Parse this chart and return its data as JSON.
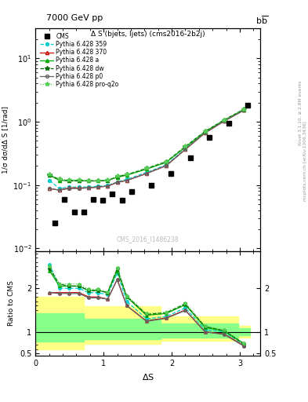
{
  "title_top": "7000 GeV pp",
  "title_right": "b$\\bar{b}$",
  "plot_title": "Δ S (bjets, ljets) (cms2016-2b2j)",
  "ylabel_main": "1/σ dσ/dΔ S [1/rad]",
  "ylabel_ratio": "Ratio to CMS",
  "xlabel": "ΔS",
  "watermark": "CMS_2016_I1486238",
  "rivet_label": "Rivet 3.1.10, ≥ 2.8M events",
  "mcplots_label": "mcplots.cern.ch [arXiv:1306.3436]",
  "cms_x": [
    0.28,
    0.42,
    0.57,
    0.71,
    0.85,
    0.99,
    1.13,
    1.27,
    1.41,
    1.7,
    1.99,
    2.27,
    2.55,
    2.84,
    3.12
  ],
  "cms_y": [
    0.025,
    0.06,
    0.038,
    0.038,
    0.06,
    0.058,
    0.072,
    0.058,
    0.078,
    0.1,
    0.15,
    0.27,
    0.56,
    0.95,
    1.8
  ],
  "ds_x": [
    0.21,
    0.35,
    0.49,
    0.64,
    0.78,
    0.92,
    1.06,
    1.2,
    1.34,
    1.63,
    1.92,
    2.2,
    2.49,
    2.77,
    3.06
  ],
  "p359_y": [
    0.118,
    0.088,
    0.093,
    0.093,
    0.093,
    0.096,
    0.098,
    0.112,
    0.123,
    0.158,
    0.208,
    0.375,
    0.675,
    1.04,
    1.54
  ],
  "p370_y": [
    0.088,
    0.083,
    0.09,
    0.09,
    0.09,
    0.093,
    0.096,
    0.11,
    0.118,
    0.152,
    0.202,
    0.365,
    0.665,
    1.02,
    1.52
  ],
  "pa_y": [
    0.143,
    0.118,
    0.118,
    0.118,
    0.116,
    0.116,
    0.118,
    0.133,
    0.143,
    0.178,
    0.228,
    0.395,
    0.695,
    1.055,
    1.555
  ],
  "pdw_y": [
    0.143,
    0.123,
    0.116,
    0.116,
    0.116,
    0.116,
    0.118,
    0.136,
    0.146,
    0.183,
    0.233,
    0.405,
    0.705,
    1.065,
    1.575
  ],
  "pp0_y": [
    0.088,
    0.083,
    0.088,
    0.088,
    0.09,
    0.093,
    0.096,
    0.11,
    0.118,
    0.152,
    0.202,
    0.365,
    0.665,
    1.02,
    1.515
  ],
  "pq2o_y": [
    0.148,
    0.123,
    0.12,
    0.12,
    0.118,
    0.118,
    0.12,
    0.138,
    0.148,
    0.186,
    0.236,
    0.41,
    0.71,
    1.07,
    1.585
  ],
  "ratio_x": [
    0.21,
    0.35,
    0.49,
    0.64,
    0.78,
    0.92,
    1.06,
    1.2,
    1.34,
    1.63,
    1.92,
    2.2,
    2.49,
    2.77,
    3.06
  ],
  "r359_y": [
    2.55,
    2.0,
    2.0,
    2.0,
    1.9,
    1.9,
    1.85,
    2.35,
    1.7,
    1.3,
    1.35,
    1.55,
    1.05,
    1.0,
    0.7
  ],
  "r370_y": [
    1.9,
    1.9,
    1.9,
    1.9,
    1.8,
    1.8,
    1.75,
    2.2,
    1.6,
    1.25,
    1.32,
    1.5,
    1.0,
    0.95,
    0.68
  ],
  "ra_y": [
    2.4,
    2.05,
    2.05,
    2.05,
    1.95,
    1.95,
    1.9,
    2.4,
    1.8,
    1.38,
    1.42,
    1.62,
    1.1,
    1.02,
    0.72
  ],
  "rdw_y": [
    2.45,
    2.1,
    2.05,
    2.05,
    1.95,
    1.95,
    1.9,
    2.45,
    1.82,
    1.4,
    1.44,
    1.64,
    1.12,
    1.03,
    0.73
  ],
  "rp0_y": [
    1.9,
    1.88,
    1.88,
    1.88,
    1.78,
    1.78,
    1.75,
    2.2,
    1.6,
    1.24,
    1.31,
    1.49,
    1.0,
    0.94,
    0.67
  ],
  "rq2o_y": [
    2.5,
    2.1,
    2.1,
    2.1,
    1.98,
    1.98,
    1.92,
    2.48,
    1.83,
    1.42,
    1.45,
    1.66,
    1.13,
    1.04,
    0.74
  ],
  "yellow_band_x": [
    0.0,
    0.42,
    0.42,
    0.71,
    0.71,
    1.27,
    1.27,
    1.84,
    1.84,
    2.41,
    2.41,
    2.98,
    2.98,
    3.15
  ],
  "yellow_band_lo": [
    0.6,
    0.6,
    0.6,
    0.6,
    0.73,
    0.73,
    0.73,
    0.73,
    0.8,
    0.8,
    0.8,
    0.8,
    0.86,
    0.86
  ],
  "yellow_band_hi": [
    1.8,
    1.8,
    1.8,
    1.8,
    1.58,
    1.58,
    1.58,
    1.58,
    1.35,
    1.35,
    1.35,
    1.35,
    1.14,
    1.14
  ],
  "green_band_x": [
    0.0,
    0.42,
    0.42,
    0.71,
    0.71,
    1.27,
    1.27,
    1.84,
    1.84,
    2.41,
    2.41,
    2.98,
    2.98,
    3.15
  ],
  "green_band_lo": [
    0.77,
    0.77,
    0.77,
    0.77,
    0.83,
    0.83,
    0.83,
    0.83,
    0.87,
    0.87,
    0.87,
    0.87,
    0.92,
    0.92
  ],
  "green_band_hi": [
    1.42,
    1.42,
    1.42,
    1.42,
    1.3,
    1.3,
    1.3,
    1.3,
    1.2,
    1.2,
    1.2,
    1.2,
    1.08,
    1.08
  ],
  "colors": {
    "cms": "#000000",
    "p359": "#00CCCC",
    "p370": "#CC0000",
    "pa": "#00AA00",
    "pdw": "#006600",
    "pp0": "#666666",
    "pq2o": "#55CC55"
  },
  "main_ylim": [
    0.009,
    30.0
  ],
  "ratio_ylim": [
    0.45,
    2.85
  ],
  "xlim": [
    0.0,
    3.3
  ]
}
